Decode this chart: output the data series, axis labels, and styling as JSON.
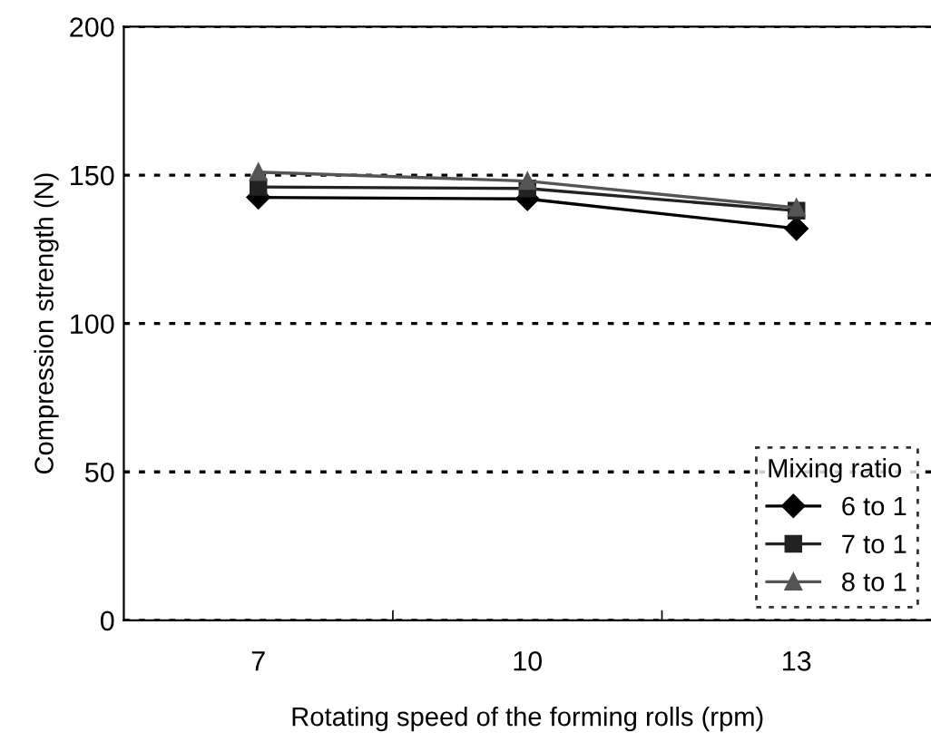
{
  "chart_data": {
    "type": "line",
    "xlabel": "Rotating speed of the forming rolls (rpm)",
    "ylabel": "Compression strength (N)",
    "legend_title": "Mixing ratio",
    "categories": [
      "7",
      "10",
      "13"
    ],
    "series": [
      {
        "name": "6 to 1",
        "color": "#000000",
        "marker": "diamond",
        "values": [
          142.5,
          142,
          132
        ]
      },
      {
        "name": "7 to 1",
        "color": "#222222",
        "marker": "square",
        "values": [
          146,
          145.5,
          138
        ]
      },
      {
        "name": "8 to 1",
        "color": "#555555",
        "marker": "triangle",
        "values": [
          151,
          148,
          139
        ]
      }
    ],
    "ylim": [
      0,
      200
    ],
    "yticks": [
      0,
      50,
      100,
      150,
      200
    ],
    "grid": "y",
    "legend": "bottom right",
    "line_style": "solid"
  }
}
